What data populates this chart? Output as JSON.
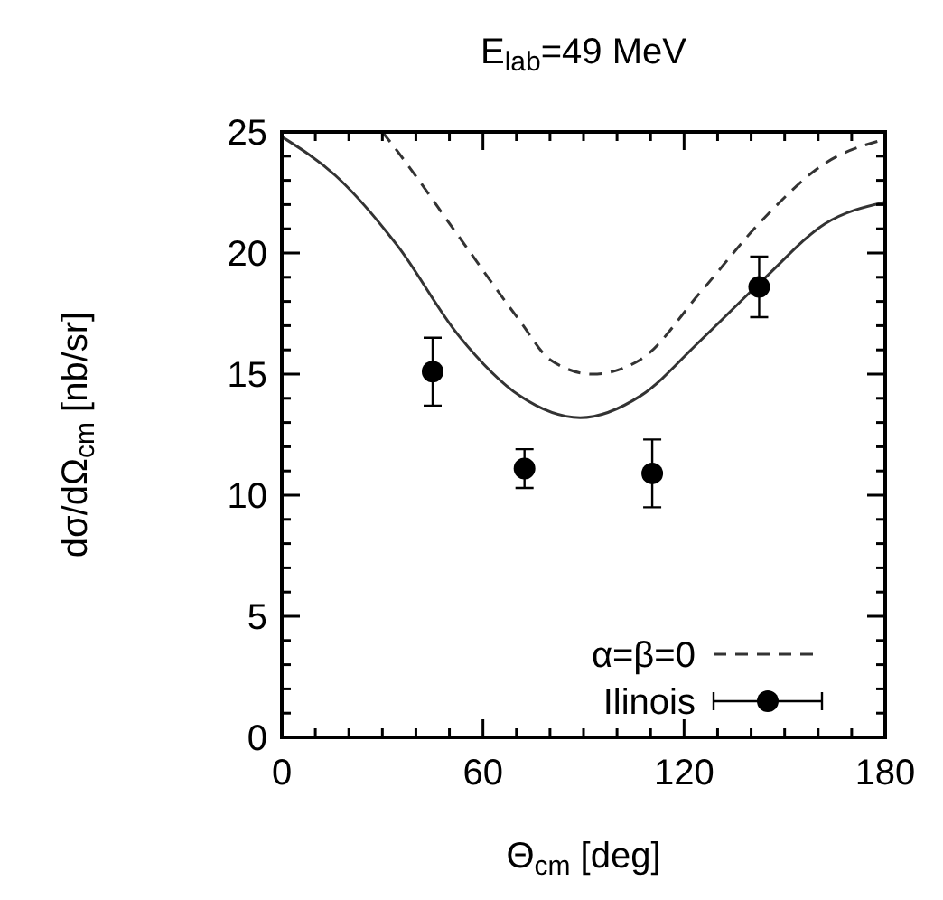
{
  "chart_data": {
    "type": "line",
    "title": "E$_{lab}$=49 MeV",
    "xlabel": "Θ$_{cm}$  [deg]",
    "ylabel": "dσ/dΩ$_{cm}$  [nb/sr]",
    "xlim": [
      0,
      180
    ],
    "ylim": [
      0,
      25
    ],
    "xticks": [
      0,
      {
        "value": 10,
        "label": null
      },
      {
        "value": 20,
        "label": null
      },
      {
        "value": 30,
        "label": null
      },
      {
        "value": 40,
        "label": null
      },
      {
        "value": 50,
        "label": null
      },
      60,
      {
        "value": 70,
        "label": null
      },
      {
        "value": 80,
        "label": null
      },
      {
        "value": 90,
        "label": null
      },
      {
        "value": 100,
        "label": null
      },
      {
        "value": 110,
        "label": null
      },
      120,
      {
        "value": 130,
        "label": null
      },
      {
        "value": 140,
        "label": null
      },
      {
        "value": 150,
        "label": null
      },
      {
        "value": 160,
        "label": null
      },
      {
        "value": 170,
        "label": null
      },
      180
    ],
    "yticks": [
      0,
      {
        "value": 1,
        "label": null
      },
      {
        "value": 2,
        "label": null
      },
      {
        "value": 3,
        "label": null
      },
      {
        "value": 4,
        "label": null
      },
      5,
      {
        "value": 6,
        "label": null
      },
      {
        "value": 7,
        "label": null
      },
      {
        "value": 8,
        "label": null
      },
      {
        "value": 9,
        "label": null
      },
      10,
      {
        "value": 11,
        "label": null
      },
      {
        "value": 12,
        "label": null
      },
      {
        "value": 13,
        "label": null
      },
      {
        "value": 14,
        "label": null
      },
      15,
      {
        "value": 16,
        "label": null
      },
      {
        "value": 17,
        "label": null
      },
      {
        "value": 18,
        "label": null
      },
      {
        "value": 19,
        "label": null
      },
      20,
      {
        "value": 21,
        "label": null
      },
      {
        "value": 22,
        "label": null
      },
      {
        "value": 23,
        "label": null
      },
      {
        "value": 24,
        "label": null
      },
      25
    ],
    "grid": false,
    "legend": "bottom right",
    "series": [
      {
        "color": "#333333",
        "line_style": "solid",
        "marker": "none",
        "x": [
          0,
          16,
          34.5,
          52.7,
          71,
          89,
          107,
          125,
          143.6,
          162,
          180
        ],
        "values": [
          24.8,
          23.2,
          20.3,
          16.6,
          14.1,
          13.2,
          14.1,
          16.4,
          18.9,
          21.2,
          22.1
        ]
      },
      {
        "name": "α=β=0",
        "color": "#333333",
        "line_style": "dashed",
        "marker": "none",
        "x": [
          30,
          34.5,
          52.7,
          71,
          80,
          92.7,
          107,
          125,
          143.6,
          162,
          180
        ],
        "values": [
          25,
          24.2,
          20.7,
          17.2,
          15.6,
          15.0,
          15.6,
          18.4,
          21.4,
          23.7,
          24.7
        ]
      },
      {
        "type": "scatter",
        "name": "Ilinois",
        "color": "#000000",
        "marker": "circle",
        "x": [
          45,
          72.4,
          110.5,
          142.4
        ],
        "values": [
          15.1,
          11.1,
          10.9,
          18.6
        ],
        "errors": [
          1.4,
          0.8,
          1.4,
          1.25
        ]
      }
    ]
  }
}
